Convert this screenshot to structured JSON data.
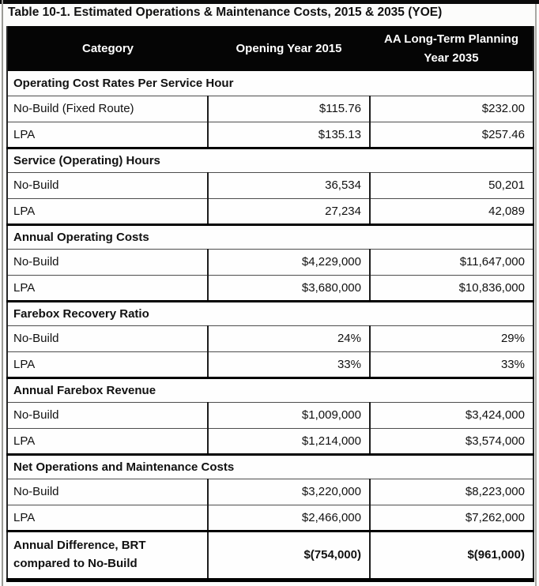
{
  "title": "Table 10-1. Estimated Operations & Maintenance Costs, 2015 & 2035 (YOE)",
  "table": {
    "columns": [
      "Category",
      "Opening Year 2015",
      "AA Long-Term Planning Year 2035"
    ],
    "sections": [
      {
        "header": "Operating Cost Rates Per Service Hour",
        "rows": [
          [
            "No-Build (Fixed Route)",
            "$115.76",
            "$232.00"
          ],
          [
            "LPA",
            "$135.13",
            "$257.46"
          ]
        ]
      },
      {
        "header": "Service (Operating) Hours",
        "rows": [
          [
            "No-Build",
            "36,534",
            "50,201"
          ],
          [
            "LPA",
            "27,234",
            "42,089"
          ]
        ]
      },
      {
        "header": "Annual Operating Costs",
        "rows": [
          [
            "No-Build",
            "$4,229,000",
            "$11,647,000"
          ],
          [
            "LPA",
            "$3,680,000",
            "$10,836,000"
          ]
        ]
      },
      {
        "header": "Farebox Recovery Ratio",
        "rows": [
          [
            "No-Build",
            "24%",
            "29%"
          ],
          [
            "LPA",
            "33%",
            "33%"
          ]
        ]
      },
      {
        "header": "Annual Farebox Revenue",
        "rows": [
          [
            "No-Build",
            "$1,009,000",
            "$3,424,000"
          ],
          [
            "LPA",
            "$1,214,000",
            "$3,574,000"
          ]
        ]
      },
      {
        "header": "Net Operations and Maintenance Costs",
        "rows": [
          [
            "No-Build",
            "$3,220,000",
            "$8,223,000"
          ],
          [
            "LPA",
            "$2,466,000",
            "$7,262,000"
          ]
        ]
      }
    ],
    "total_row": {
      "label": "Annual Difference, BRT compared to No-Build",
      "values": [
        "$(754,000)",
        "$(961,000)"
      ]
    },
    "colors": {
      "header_bg": "#050505",
      "header_text": "#ffffff",
      "border": "#000000"
    }
  }
}
